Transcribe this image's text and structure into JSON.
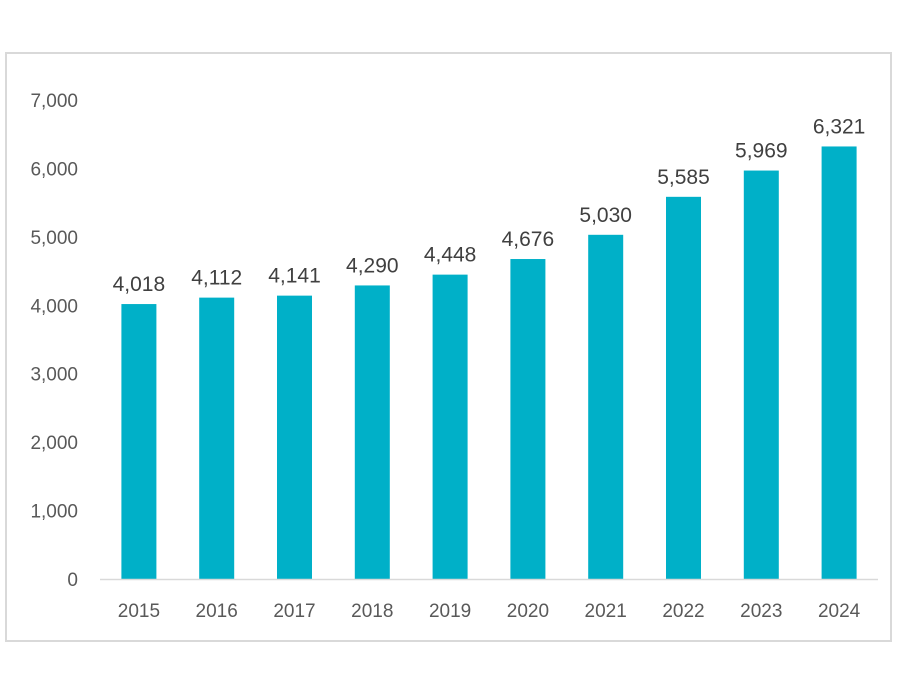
{
  "chart_data": {
    "type": "bar",
    "title": "",
    "xlabel": "",
    "ylabel": "",
    "categories": [
      "2015",
      "2016",
      "2017",
      "2018",
      "2019",
      "2020",
      "2021",
      "2022",
      "2023",
      "2024"
    ],
    "values": [
      4018,
      4112,
      4141,
      4290,
      4448,
      4676,
      5030,
      5585,
      5969,
      6321
    ],
    "value_labels": [
      "4,018",
      "4,112",
      "4,141",
      "4,290",
      "4,448",
      "4,676",
      "5,030",
      "5,585",
      "5,969",
      "6,321"
    ],
    "ylim": [
      0,
      7000
    ],
    "y_ticks": [
      0,
      1000,
      2000,
      3000,
      4000,
      5000,
      6000,
      7000
    ],
    "y_tick_labels": [
      "0",
      "1,000",
      "2,000",
      "3,000",
      "4,000",
      "5,000",
      "6,000",
      "7,000"
    ],
    "grid": false,
    "legend": "none",
    "bar_color": "#00b0c8",
    "axis_color": "#d9d9d9",
    "frame_color": "#d9d9d9"
  }
}
